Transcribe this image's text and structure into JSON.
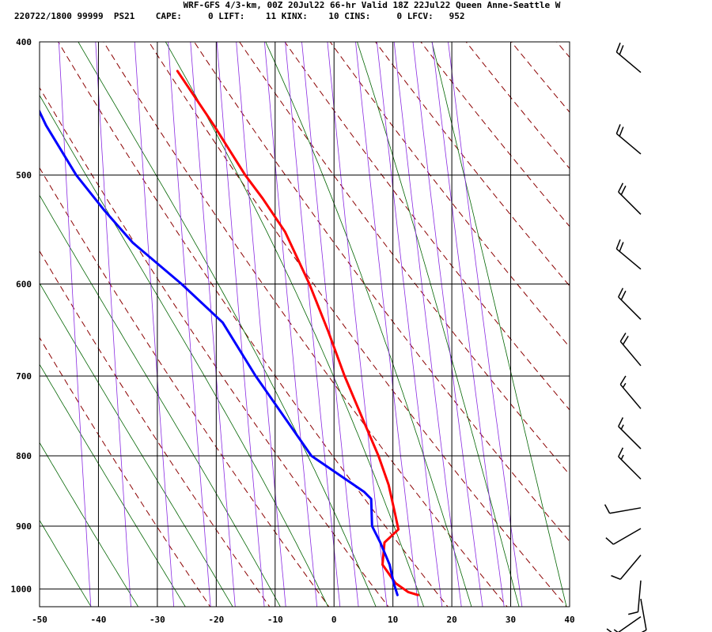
{
  "header": {
    "title_line": "WRF-GFS 4/3-km, 00Z 20Jul22 66-hr Valid 18Z 22Jul22 Queen Anne-Seattle W",
    "info_line": "220722/1800 99999  PS21    CAPE:     0 LIFT:    11 KINX:    10 CINS:     0 LFCV:   952"
  },
  "chart_data": {
    "type": "line",
    "title": "WRF-GFS 4/3-km, 00Z 20Jul22 66-hr Valid 18Z 22Jul22 Queen Anne-Seattle W",
    "xlabel": "",
    "ylabel": "",
    "x_ticks": [
      -50,
      -40,
      -30,
      -20,
      -10,
      0,
      10,
      20,
      30,
      40
    ],
    "x_tick_labels": [
      "-50",
      "-40",
      "-30",
      "-20",
      "-10",
      "0",
      "10",
      "20",
      "30",
      "40"
    ],
    "y_ticks": [
      400,
      500,
      600,
      700,
      800,
      900,
      1000
    ],
    "y_tick_labels": [
      "400",
      "500",
      "600",
      "700",
      "800",
      "900",
      "1000"
    ],
    "xlim": [
      -50,
      40
    ],
    "ylim": [
      1030,
      400
    ],
    "y_scale": "log",
    "skew": true,
    "grid": true,
    "colors": {
      "temperature": "#ff0000",
      "dewpoint": "#0000ff",
      "dry_adiabats": "#8b0000",
      "moist_adiabats": "#006400",
      "isohumes": "#8a2be2"
    },
    "series": [
      {
        "key": "temperature",
        "color": "#ff0000",
        "points": [
          [
            1010,
            14.2
          ],
          [
            1005,
            12.5
          ],
          [
            990,
            10.3
          ],
          [
            960,
            8.0
          ],
          [
            925,
            8.2
          ],
          [
            905,
            10.5
          ],
          [
            880,
            9.8
          ],
          [
            840,
            8.6
          ],
          [
            800,
            6.7
          ],
          [
            760,
            4.3
          ],
          [
            700,
            0.5
          ],
          [
            650,
            -2.5
          ],
          [
            600,
            -6.0
          ],
          [
            550,
            -10.4
          ],
          [
            520,
            -14.4
          ],
          [
            500,
            -17.5
          ],
          [
            460,
            -23.1
          ],
          [
            420,
            -29.6
          ]
        ]
      },
      {
        "key": "dewpoint",
        "color": "#0000ff",
        "points": [
          [
            1010,
            10.7
          ],
          [
            990,
            10.0
          ],
          [
            960,
            9.2
          ],
          [
            925,
            7.5
          ],
          [
            900,
            6.0
          ],
          [
            860,
            5.7
          ],
          [
            850,
            4.5
          ],
          [
            800,
            -4.7
          ],
          [
            700,
            -14.6
          ],
          [
            640,
            -20.5
          ],
          [
            600,
            -27.7
          ],
          [
            560,
            -36.2
          ],
          [
            530,
            -41.3
          ],
          [
            500,
            -46.2
          ],
          [
            460,
            -51.6
          ],
          [
            415,
            -56.9
          ]
        ]
      }
    ],
    "wind_barbs": [
      {
        "pressure": 410,
        "direction": 310,
        "speed": 20
      },
      {
        "pressure": 470,
        "direction": 310,
        "speed": 20
      },
      {
        "pressure": 520,
        "direction": 315,
        "speed": 20
      },
      {
        "pressure": 570,
        "direction": 310,
        "speed": 20
      },
      {
        "pressure": 620,
        "direction": 315,
        "speed": 20
      },
      {
        "pressure": 670,
        "direction": 320,
        "speed": 20
      },
      {
        "pressure": 720,
        "direction": 320,
        "speed": 15
      },
      {
        "pressure": 770,
        "direction": 315,
        "speed": 15
      },
      {
        "pressure": 810,
        "direction": 315,
        "speed": 15
      },
      {
        "pressure": 850,
        "direction": 260,
        "speed": 10
      },
      {
        "pressure": 880,
        "direction": 240,
        "speed": 10
      },
      {
        "pressure": 920,
        "direction": 220,
        "speed": 10
      },
      {
        "pressure": 960,
        "direction": 185,
        "speed": 10
      },
      {
        "pressure": 990,
        "direction": 170,
        "speed": 10
      },
      {
        "pressure": 1020,
        "direction": 235,
        "speed": 15
      }
    ]
  }
}
